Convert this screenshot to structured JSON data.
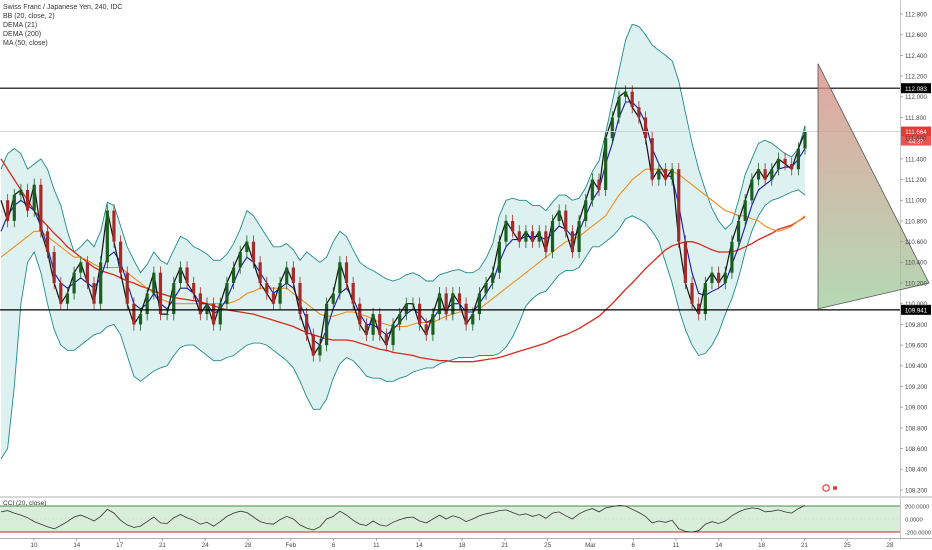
{
  "legend": {
    "title": "Swiss Franc / Japanese Yen, 240, IDC",
    "lines": [
      "BB (20, close, 2)",
      "DEMA (21)",
      "DEMA (200)",
      "MA (50, close)"
    ],
    "cci_label": "CCI (20, close)"
  },
  "colors": {
    "bb_band": "#1f8a8a",
    "bb_fill": "#cfece9",
    "dema21": "#1a1aa8",
    "dema200": "#d62a1e",
    "ma50": "#f28a1c",
    "price": "#111111",
    "candle_up": "#1b5e20",
    "candle_down": "#a52a2a",
    "level_line": "#000000",
    "last_price_badge": "#e53935",
    "cci_line": "#333333",
    "cci_fill": "#d8eed8"
  },
  "chart_data": {
    "type": "line",
    "title": "Swiss Franc / Japanese Yen, 240, IDC",
    "x_tick_labels": [
      "10",
      "14",
      "17",
      "21",
      "24",
      "28",
      "Feb",
      "6",
      "11",
      "14",
      "18",
      "21",
      "25",
      "Mar",
      "6",
      "11",
      "14",
      "18",
      "21",
      "25",
      "28"
    ],
    "y_tick_labels": [
      "112.800",
      "112.600",
      "112.400",
      "112.200",
      "112.000",
      "111.800",
      "111.600",
      "111.400",
      "111.200",
      "111.000",
      "110.800",
      "110.600",
      "110.400",
      "110.200",
      "110.000",
      "109.800",
      "109.600",
      "109.400",
      "109.200",
      "109.000",
      "108.800",
      "108.600",
      "108.400",
      "108.200"
    ],
    "ylim": [
      108.15,
      112.85
    ],
    "grid": false,
    "horizontal_levels": [
      {
        "label": "112.083",
        "value": 112.083
      },
      {
        "label": "109.941",
        "value": 109.941
      }
    ],
    "last_price": {
      "label": "111.664",
      "value": 111.664,
      "countdown": "44:37"
    },
    "series": [
      {
        "key": "price",
        "values": [
          111.0,
          110.8,
          111.05,
          111.1,
          110.9,
          111.15,
          110.7,
          110.5,
          110.2,
          110.0,
          110.1,
          110.3,
          110.4,
          110.2,
          110.0,
          110.4,
          110.9,
          110.6,
          110.3,
          110.0,
          109.8,
          109.9,
          110.1,
          110.3,
          109.9,
          109.9,
          110.2,
          110.35,
          110.2,
          110.1,
          109.9,
          110.0,
          109.8,
          110.0,
          110.2,
          110.35,
          110.5,
          110.6,
          110.4,
          110.2,
          110.1,
          110.0,
          110.2,
          110.35,
          110.2,
          109.9,
          109.7,
          109.5,
          109.6,
          110.0,
          110.1,
          110.4,
          110.2,
          110.0,
          109.8,
          109.7,
          109.9,
          109.7,
          109.6,
          109.8,
          109.9,
          110.0,
          110.0,
          109.8,
          109.7,
          109.9,
          110.1,
          109.9,
          110.1,
          110.0,
          109.8,
          109.9,
          110.1,
          110.2,
          110.3,
          110.6,
          110.8,
          110.7,
          110.6,
          110.7,
          110.6,
          110.7,
          110.5,
          110.8,
          110.9,
          110.7,
          110.5,
          110.8,
          111.0,
          111.2,
          111.1,
          111.6,
          111.8,
          112.0,
          112.05,
          111.9,
          111.8,
          111.6,
          111.2,
          111.3,
          111.2,
          111.3,
          110.6,
          110.2,
          110.0,
          109.9,
          110.2,
          110.3,
          110.2,
          110.3,
          110.6,
          110.8,
          111.0,
          111.2,
          111.3,
          111.2,
          111.3,
          111.4,
          111.35,
          111.3,
          111.5,
          111.66
        ]
      },
      {
        "key": "dema21",
        "name": "DEMA (21)",
        "values": [
          110.7,
          110.85,
          110.95,
          111.0,
          110.95,
          110.9,
          110.75,
          110.55,
          110.3,
          110.2,
          110.15,
          110.2,
          110.25,
          110.2,
          110.15,
          110.25,
          110.45,
          110.5,
          110.4,
          110.2,
          110.0,
          109.95,
          110.0,
          110.1,
          110.0,
          109.95,
          110.05,
          110.15,
          110.15,
          110.1,
          110.0,
          110.0,
          109.9,
          109.95,
          110.05,
          110.2,
          110.35,
          110.45,
          110.4,
          110.3,
          110.2,
          110.1,
          110.15,
          110.2,
          110.15,
          110.0,
          109.85,
          109.65,
          109.6,
          109.75,
          109.95,
          110.1,
          110.15,
          110.05,
          109.9,
          109.8,
          109.8,
          109.75,
          109.7,
          109.75,
          109.82,
          109.9,
          109.95,
          109.9,
          109.82,
          109.85,
          109.95,
          109.95,
          110.0,
          110.0,
          109.92,
          109.92,
          110.0,
          110.1,
          110.2,
          110.4,
          110.55,
          110.62,
          110.62,
          110.65,
          110.65,
          110.65,
          110.62,
          110.68,
          110.75,
          110.72,
          110.65,
          110.7,
          110.85,
          111.0,
          111.1,
          111.35,
          111.55,
          111.8,
          111.95,
          111.95,
          111.88,
          111.75,
          111.5,
          111.35,
          111.25,
          111.22,
          110.95,
          110.6,
          110.3,
          110.1,
          110.08,
          110.12,
          110.15,
          110.2,
          110.38,
          110.55,
          110.75,
          110.95,
          111.1,
          111.15,
          111.2,
          111.3,
          111.32,
          111.32,
          111.4,
          111.5
        ]
      },
      {
        "key": "ma50",
        "name": "MA (50, close)",
        "values": [
          110.45,
          110.5,
          110.55,
          110.6,
          110.65,
          110.7,
          110.7,
          110.65,
          110.6,
          110.55,
          110.5,
          110.45,
          110.45,
          110.42,
          110.38,
          110.35,
          110.35,
          110.35,
          110.35,
          110.3,
          110.25,
          110.2,
          110.15,
          110.1,
          110.05,
          110.02,
          110.0,
          110.0,
          110.0,
          110.0,
          110.0,
          110.0,
          110.0,
          110.0,
          110.0,
          110.02,
          110.05,
          110.1,
          110.12,
          110.15,
          110.15,
          110.15,
          110.15,
          110.15,
          110.1,
          110.05,
          110.0,
          109.95,
          109.9,
          109.88,
          109.88,
          109.9,
          109.92,
          109.92,
          109.9,
          109.88,
          109.85,
          109.82,
          109.8,
          109.78,
          109.78,
          109.78,
          109.8,
          109.82,
          109.82,
          109.82,
          109.85,
          109.88,
          109.9,
          109.92,
          109.92,
          109.92,
          109.95,
          110.0,
          110.05,
          110.1,
          110.15,
          110.2,
          110.25,
          110.3,
          110.35,
          110.4,
          110.45,
          110.5,
          110.55,
          110.6,
          110.62,
          110.65,
          110.7,
          110.75,
          110.8,
          110.85,
          110.95,
          111.05,
          111.12,
          111.2,
          111.25,
          111.3,
          111.3,
          111.3,
          111.3,
          111.28,
          111.25,
          111.2,
          111.15,
          111.1,
          111.05,
          111.0,
          110.95,
          110.9,
          110.88,
          110.85,
          110.85,
          110.82,
          110.8,
          110.75,
          110.72,
          110.7,
          110.72,
          110.75,
          110.8,
          110.85
        ]
      },
      {
        "key": "dema200",
        "name": "DEMA (200)",
        "values": [
          111.4,
          111.3,
          111.2,
          111.1,
          111.0,
          110.9,
          110.82,
          110.75,
          110.68,
          110.62,
          110.55,
          110.5,
          110.45,
          110.4,
          110.35,
          110.32,
          110.3,
          110.28,
          110.25,
          110.22,
          110.2,
          110.17,
          110.15,
          110.12,
          110.1,
          110.08,
          110.06,
          110.05,
          110.04,
          110.03,
          110.02,
          110.0,
          109.98,
          109.96,
          109.94,
          109.93,
          109.92,
          109.91,
          109.9,
          109.88,
          109.86,
          109.84,
          109.82,
          109.8,
          109.78,
          109.75,
          109.72,
          109.7,
          109.68,
          109.66,
          109.65,
          109.65,
          109.65,
          109.64,
          109.62,
          109.6,
          109.58,
          109.56,
          109.55,
          109.53,
          109.52,
          109.51,
          109.5,
          109.48,
          109.47,
          109.46,
          109.45,
          109.45,
          109.44,
          109.44,
          109.44,
          109.44,
          109.45,
          109.46,
          109.47,
          109.48,
          109.5,
          109.52,
          109.54,
          109.56,
          109.58,
          109.6,
          109.62,
          109.65,
          109.68,
          109.7,
          109.73,
          109.76,
          109.8,
          109.84,
          109.88,
          109.94,
          110.0,
          110.07,
          110.14,
          110.2,
          110.27,
          110.34,
          110.4,
          110.46,
          110.52,
          110.56,
          110.58,
          110.6,
          110.6,
          110.58,
          110.55,
          110.52,
          110.5,
          110.5,
          110.5,
          110.52,
          110.55,
          110.58,
          110.62,
          110.65,
          110.68,
          110.72,
          110.74,
          110.76,
          110.8,
          110.84
        ]
      },
      {
        "key": "bb_upper",
        "name": "BB (20, close, 2)",
        "values": [
          111.3,
          111.45,
          111.5,
          111.45,
          111.3,
          111.35,
          111.4,
          111.3,
          111.1,
          110.95,
          110.7,
          110.5,
          110.55,
          110.62,
          110.55,
          110.7,
          110.98,
          110.95,
          110.75,
          110.55,
          110.42,
          110.3,
          110.38,
          110.5,
          110.42,
          110.38,
          110.52,
          110.65,
          110.62,
          110.55,
          110.52,
          110.48,
          110.42,
          110.42,
          110.48,
          110.58,
          110.72,
          110.9,
          110.85,
          110.75,
          110.65,
          110.55,
          110.55,
          110.58,
          110.52,
          110.42,
          110.5,
          110.45,
          110.4,
          110.45,
          110.6,
          110.7,
          110.65,
          110.52,
          110.4,
          110.35,
          110.32,
          110.28,
          110.24,
          110.22,
          110.24,
          110.28,
          110.3,
          110.27,
          110.22,
          110.22,
          110.28,
          110.3,
          110.32,
          110.33,
          110.3,
          110.3,
          110.34,
          110.44,
          110.58,
          110.85,
          111.0,
          111.02,
          111.0,
          111.0,
          110.95,
          110.95,
          110.9,
          110.98,
          111.05,
          111.05,
          111.0,
          111.02,
          111.12,
          111.28,
          111.38,
          111.65,
          111.95,
          112.25,
          112.55,
          112.7,
          112.68,
          112.6,
          112.5,
          112.45,
          112.4,
          112.35,
          112.15,
          111.85,
          111.55,
          111.3,
          111.1,
          110.92,
          110.8,
          110.72,
          110.78,
          111.0,
          111.25,
          111.4,
          111.55,
          111.58,
          111.55,
          111.5,
          111.45,
          111.42,
          111.5,
          111.72
        ]
      },
      {
        "key": "bb_lower",
        "name": "BB (20, close, 2)",
        "values": [
          108.5,
          108.6,
          109.2,
          110.0,
          110.4,
          110.5,
          110.3,
          110.0,
          109.75,
          109.6,
          109.55,
          109.55,
          109.6,
          109.65,
          109.7,
          109.72,
          109.78,
          109.8,
          109.7,
          109.5,
          109.3,
          109.25,
          109.3,
          109.35,
          109.38,
          109.4,
          109.5,
          109.58,
          109.6,
          109.6,
          109.55,
          109.5,
          109.45,
          109.45,
          109.48,
          109.5,
          109.55,
          109.6,
          109.62,
          109.62,
          109.6,
          109.55,
          109.5,
          109.45,
          109.38,
          109.25,
          109.1,
          108.98,
          108.98,
          109.08,
          109.28,
          109.42,
          109.48,
          109.45,
          109.38,
          109.3,
          109.28,
          109.28,
          109.25,
          109.25,
          109.28,
          109.3,
          109.34,
          109.36,
          109.38,
          109.38,
          109.42,
          109.44,
          109.46,
          109.48,
          109.48,
          109.48,
          109.5,
          109.5,
          109.5,
          109.52,
          109.58,
          109.68,
          109.82,
          109.98,
          110.05,
          110.1,
          110.12,
          110.2,
          110.28,
          110.32,
          110.32,
          110.35,
          110.45,
          110.55,
          110.55,
          110.6,
          110.65,
          110.72,
          110.82,
          110.85,
          110.82,
          110.78,
          110.7,
          110.6,
          110.4,
          110.2,
          109.95,
          109.75,
          109.6,
          109.5,
          109.52,
          109.6,
          109.72,
          109.9,
          110.05,
          110.25,
          110.5,
          110.7,
          110.85,
          110.95,
          111.0,
          111.02,
          111.05,
          111.08,
          111.1,
          111.05
        ]
      }
    ],
    "cci": {
      "label": "CCI (20, close)",
      "tick_labels": [
        "200.0000",
        "0.0000",
        "-200.0000"
      ],
      "ylim": [
        -210,
        230
      ],
      "values": [
        110,
        130,
        90,
        60,
        20,
        -40,
        -80,
        -120,
        -150,
        -100,
        -40,
        30,
        60,
        20,
        -30,
        40,
        150,
        90,
        -20,
        -90,
        -130,
        -110,
        -40,
        30,
        -60,
        -70,
        20,
        70,
        20,
        -20,
        -80,
        -50,
        -110,
        -40,
        40,
        90,
        120,
        100,
        30,
        -40,
        -70,
        -80,
        -10,
        40,
        0,
        -90,
        -140,
        -170,
        -120,
        0,
        40,
        120,
        60,
        -20,
        -80,
        -100,
        -30,
        -90,
        -110,
        -50,
        -10,
        20,
        30,
        -30,
        -60,
        0,
        60,
        0,
        50,
        20,
        -40,
        0,
        50,
        80,
        100,
        130,
        140,
        100,
        60,
        80,
        40,
        70,
        10,
        90,
        110,
        50,
        0,
        80,
        130,
        160,
        110,
        170,
        190,
        210,
        200,
        150,
        100,
        40,
        -60,
        -30,
        -50,
        -20,
        -150,
        -190,
        -200,
        -180,
        -80,
        -40,
        -70,
        -30,
        50,
        110,
        150,
        170,
        160,
        110,
        120,
        140,
        110,
        90,
        160,
        210
      ]
    },
    "projection_triangle": {
      "top": 112.32,
      "bottom": 109.95,
      "tip": 110.2
    }
  }
}
